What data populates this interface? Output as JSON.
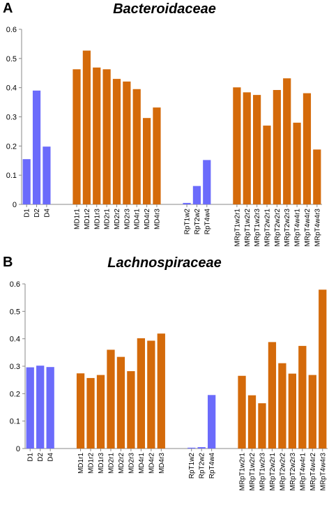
{
  "chart_data": [
    {
      "panel_label": "A",
      "type": "bar",
      "title": "Bacteroidaceae",
      "xlabel": "",
      "ylabel": "",
      "ylim": [
        0,
        0.6
      ],
      "yticks": [
        "0",
        "0.1",
        "0.2",
        "0.3",
        "0.4",
        "0.5",
        "0.6"
      ],
      "grid": false,
      "legend": "none",
      "groups": [
        {
          "color": "#6b6bfb",
          "categories": [
            "D1",
            "D2",
            "D4"
          ],
          "values": [
            0.155,
            0.39,
            0.198
          ]
        },
        {
          "color": "#d46a0a",
          "categories": [
            "MD1r1",
            "MD1r2",
            "MD1r3",
            "MD2r1",
            "MD2r2",
            "MD2r3",
            "MD4r1",
            "MD4r2",
            "MD4r3"
          ],
          "values": [
            0.463,
            0.527,
            0.469,
            0.463,
            0.43,
            0.421,
            0.395,
            0.296,
            0.332
          ]
        },
        {
          "color": "#6b6bfb",
          "categories": [
            "RpT1w2",
            "RpT2w2",
            "RpT4w4"
          ],
          "values": [
            0.005,
            0.063,
            0.152
          ]
        },
        {
          "color": "#d46a0a",
          "categories": [
            "MRpT1w2r1",
            "MRpT1w2r2",
            "MRpT1w2r3",
            "MRpT2w2r1",
            "MRpT2w2r2",
            "MRpT2w2r3",
            "MRpT4w4r1",
            "MRpT4w4r2",
            "MRpT4w4r3"
          ],
          "values": [
            0.401,
            0.384,
            0.375,
            0.27,
            0.392,
            0.432,
            0.28,
            0.381,
            0.188
          ]
        }
      ]
    },
    {
      "panel_label": "B",
      "type": "bar",
      "title": "Lachnospiraceae",
      "xlabel": "",
      "ylabel": "",
      "ylim": [
        0,
        0.6
      ],
      "yticks": [
        "0",
        "0.1",
        "0.2",
        "0.3",
        "0.4",
        "0.5",
        "0.6"
      ],
      "grid": false,
      "legend": "none",
      "groups": [
        {
          "color": "#6b6bfb",
          "categories": [
            "D1",
            "D2",
            "D4"
          ],
          "values": [
            0.296,
            0.302,
            0.297
          ]
        },
        {
          "color": "#d46a0a",
          "categories": [
            "MD1r1",
            "MD1r2",
            "MD1r3",
            "MD2r1",
            "MD2r2",
            "MD2r3",
            "MD4r1",
            "MD4r2",
            "MD4r3"
          ],
          "values": [
            0.274,
            0.257,
            0.268,
            0.36,
            0.334,
            0.282,
            0.402,
            0.393,
            0.419
          ]
        },
        {
          "color": "#6b6bfb",
          "categories": [
            "RpT1w2",
            "RpT2w2",
            "RpT4w4"
          ],
          "values": [
            0.003,
            0.005,
            0.195
          ]
        },
        {
          "color": "#d46a0a",
          "categories": [
            "MRpT1w2r1",
            "MRpT1w2r2",
            "MRpT1w2r3",
            "MRpT2w2r1",
            "MRpT2w2r2",
            "MRpT2w2r3",
            "MRpT4w4r1",
            "MRpT4w4r2",
            "MRpT4w4r3"
          ],
          "values": [
            0.265,
            0.194,
            0.165,
            0.388,
            0.311,
            0.273,
            0.374,
            0.268,
            0.579
          ]
        }
      ]
    }
  ]
}
